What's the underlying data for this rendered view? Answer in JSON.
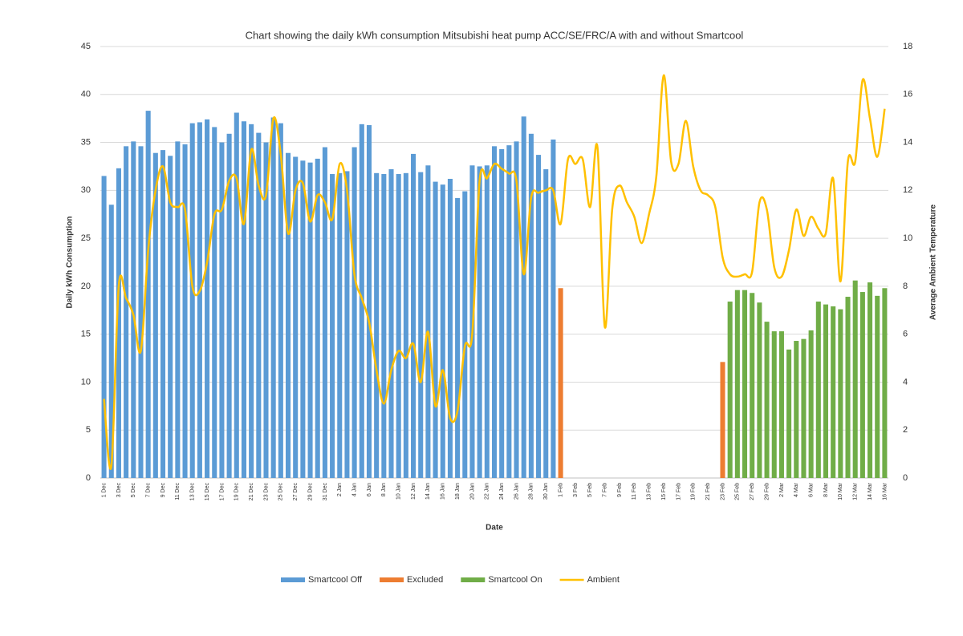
{
  "chart_data": {
    "type": "bar_line",
    "title": "Chart showing the daily kWh consumption Mitsubishi heat pump ACC/SE/FRC/A with and without Smartcool",
    "x_label": "Date",
    "y_label": "Daily kWh Consumption",
    "y2_label": "Average Ambient Temperature",
    "categories": [
      "1 Dec",
      null,
      "3 Dec",
      null,
      "5 Dec",
      null,
      "7 Dec",
      null,
      "9 Dec",
      null,
      "11 Dec",
      null,
      "13 Dec",
      null,
      "15 Dec",
      null,
      "17 Dec",
      null,
      "19 Dec",
      null,
      "21 Dec",
      null,
      "23 Dec",
      null,
      "25 Dec",
      null,
      "27 Dec",
      null,
      "29 Dec",
      null,
      "31 Dec",
      null,
      "2 Jan",
      null,
      "4 Jan",
      null,
      "6 Jan",
      null,
      "8 Jan",
      null,
      "10 Jan",
      null,
      "12 Jan",
      null,
      "14 Jan",
      null,
      "16 Jan",
      null,
      "18 Jan",
      null,
      "20 Jan",
      null,
      "22 Jan",
      null,
      "24 Jan",
      null,
      "26 Jan",
      null,
      "28 Jan",
      null,
      "30 Jan",
      null,
      "1 Feb",
      null,
      "3 Feb",
      null,
      "5 Feb",
      null,
      "7 Feb",
      null,
      "9 Feb",
      null,
      "11 Feb",
      null,
      "13 Feb",
      null,
      "15 Feb",
      null,
      "17 Feb",
      null,
      "19 Feb",
      null,
      "21 Feb",
      null,
      "23 Feb",
      null,
      "25 Feb",
      null,
      "27 Feb",
      null,
      "29 Feb",
      null,
      "2 Mar",
      null,
      "4 Mar",
      null,
      "6 Mar",
      null,
      "8 Mar",
      null,
      "10 Mar",
      null,
      "12 Mar",
      null,
      "14 Mar",
      null,
      "16 Mar"
    ],
    "series": [
      {
        "name": "Smartcool Off",
        "color": "#5b9bd5",
        "kind": "bar",
        "values": [
          31.5,
          28.5,
          32.3,
          34.6,
          35.1,
          34.6,
          38.3,
          33.9,
          34.2,
          33.6,
          35.1,
          34.8,
          37,
          37.1,
          37.4,
          36.6,
          35,
          35.9,
          38.1,
          37.2,
          36.9,
          36,
          35,
          37.6,
          37,
          33.9,
          33.5,
          33.1,
          32.9,
          33.3,
          34.5,
          31.7,
          31.8,
          32,
          34.5,
          36.9,
          36.8,
          31.8,
          31.7,
          32.2,
          31.7,
          31.8,
          33.8,
          31.9,
          32.6,
          30.9,
          30.6,
          31.2,
          29.2,
          29.9,
          32.6,
          32.5,
          32.6,
          34.6,
          34.3,
          34.7,
          35.1,
          37.7,
          35.9,
          33.7,
          32.2,
          35.3,
          null,
          null,
          null,
          null,
          null,
          null,
          null,
          null,
          null,
          null,
          null,
          null,
          null,
          null,
          null,
          null,
          null,
          null,
          null,
          null,
          null,
          null,
          null,
          null,
          null,
          null,
          null,
          null,
          null,
          null,
          null,
          null,
          null,
          null,
          null,
          null,
          null,
          null,
          null,
          null,
          null,
          null,
          null,
          null,
          null
        ]
      },
      {
        "name": "Excluded",
        "color": "#ed7d31",
        "kind": "bar",
        "values": [
          null,
          null,
          null,
          null,
          null,
          null,
          null,
          null,
          null,
          null,
          null,
          null,
          null,
          null,
          null,
          null,
          null,
          null,
          null,
          null,
          null,
          null,
          null,
          null,
          null,
          null,
          null,
          null,
          null,
          null,
          null,
          null,
          null,
          null,
          null,
          null,
          null,
          null,
          null,
          null,
          null,
          null,
          null,
          null,
          null,
          null,
          null,
          null,
          null,
          null,
          null,
          null,
          null,
          null,
          null,
          null,
          null,
          null,
          null,
          null,
          null,
          null,
          19.8,
          null,
          null,
          null,
          null,
          null,
          null,
          null,
          null,
          null,
          null,
          null,
          null,
          null,
          null,
          null,
          null,
          null,
          null,
          null,
          null,
          null,
          12.1,
          null,
          null,
          null,
          null,
          null,
          null,
          null,
          null,
          null,
          null,
          null,
          null,
          null,
          null,
          null,
          null,
          null,
          null,
          null,
          null,
          null,
          null
        ]
      },
      {
        "name": "Smartcool On",
        "color": "#70ad47",
        "kind": "bar",
        "values": [
          null,
          null,
          null,
          null,
          null,
          null,
          null,
          null,
          null,
          null,
          null,
          null,
          null,
          null,
          null,
          null,
          null,
          null,
          null,
          null,
          null,
          null,
          null,
          null,
          null,
          null,
          null,
          null,
          null,
          null,
          null,
          null,
          null,
          null,
          null,
          null,
          null,
          null,
          null,
          null,
          null,
          null,
          null,
          null,
          null,
          null,
          null,
          null,
          null,
          null,
          null,
          null,
          null,
          null,
          null,
          null,
          null,
          null,
          null,
          null,
          null,
          null,
          null,
          null,
          null,
          null,
          null,
          null,
          null,
          null,
          null,
          null,
          null,
          null,
          null,
          null,
          null,
          null,
          null,
          null,
          null,
          null,
          null,
          null,
          null,
          18.4,
          19.6,
          19.6,
          19.3,
          18.3,
          16.3,
          15.3,
          15.3,
          13.4,
          14.3,
          14.5,
          15.4,
          18.4,
          18.1,
          17.9,
          17.6,
          18.9,
          20.6,
          19.4,
          20.4,
          19.0,
          19.8
        ]
      },
      {
        "name": "Ambient",
        "color": "#ffc000",
        "kind": "line",
        "axis": "y2",
        "values": [
          3.3,
          0.5,
          8,
          7.5,
          6.8,
          5.3,
          9.5,
          12,
          13,
          11.5,
          11.3,
          11.2,
          8,
          7.8,
          9,
          11,
          11.2,
          12.4,
          12.5,
          10.6,
          13.7,
          12.2,
          11.8,
          15,
          13.5,
          10.2,
          12,
          12.3,
          10.7,
          11.8,
          11.5,
          10.8,
          13.1,
          12,
          8.5,
          7.5,
          6.5,
          4.5,
          3.1,
          4.5,
          5.3,
          5,
          5.6,
          4,
          6.1,
          3,
          4.5,
          2.5,
          2.8,
          5.5,
          6,
          12.4,
          12.5,
          13.1,
          12.9,
          12.7,
          12.4,
          8.5,
          11.7,
          11.9,
          12,
          12,
          10.6,
          13.3,
          13.1,
          13.3,
          11.3,
          13.8,
          6.3,
          11.2,
          12.2,
          11.5,
          10.9,
          9.8,
          11,
          12.6,
          16.8,
          13.2,
          13.1,
          14.9,
          13,
          12,
          11.8,
          11.3,
          9.2,
          8.5,
          8.4,
          8.5,
          8.6,
          11.5,
          11.2,
          8.8,
          8.4,
          9.5,
          11.2,
          10.1,
          10.9,
          10.4,
          10.2,
          12.5,
          8.2,
          13.2,
          13.2,
          16.6,
          15.0,
          13.4,
          15.4
        ]
      }
    ],
    "ylim": [
      0,
      45
    ],
    "yticks": [
      0,
      5,
      10,
      15,
      20,
      25,
      30,
      35,
      40,
      45
    ],
    "y2lim": [
      0,
      18
    ],
    "y2ticks": [
      0,
      2,
      4,
      6,
      8,
      10,
      12,
      14,
      16,
      18
    ],
    "grid": true,
    "legend": "bottom"
  }
}
